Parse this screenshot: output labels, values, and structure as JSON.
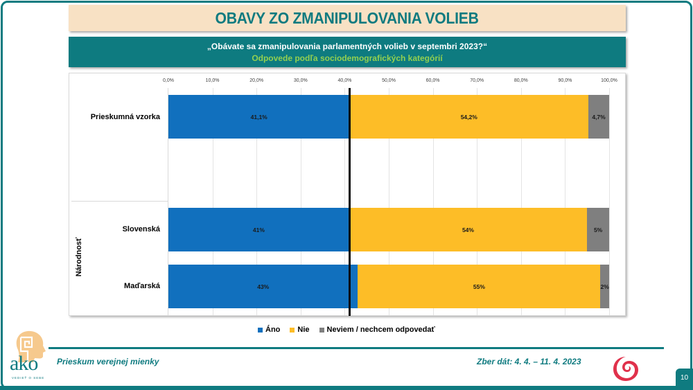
{
  "slide": {
    "title": "OBAVY ZO ZMANIPULOVANIA VOLIEB",
    "question": "„Obávate sa zmanipulovania parlamentných volieb v septembri 2023?“",
    "subtitle": "Odpovede podľa sociodemografických kategórií",
    "page_number": "10"
  },
  "footer": {
    "left_text": "Prieskum verejnej mienky",
    "right_text": "Zber dát: 4. 4. – 11. 4. 2023",
    "logo_text": "ako",
    "logo_tagline": "VEDIEŤ O SEBE"
  },
  "axis": {
    "ticks": [
      "0,0%",
      "10,0%",
      "20,0%",
      "30,0%",
      "40,0%",
      "50,0%",
      "60,0%",
      "70,0%",
      "80,0%",
      "90,0%",
      "100,0%"
    ]
  },
  "legend": {
    "items": [
      {
        "label": "Áno",
        "color": "#1170be"
      },
      {
        "label": "Nie",
        "color": "#fdbd27"
      },
      {
        "label": "Neviem / nechcem odpovedať",
        "color": "#7f7f7f"
      }
    ]
  },
  "rows": [
    {
      "label": "Prieskumná vzorka",
      "group": "",
      "ano": 41.1,
      "nie": 54.2,
      "neviem": 4.7,
      "ano_label": "41,1%",
      "nie_label": "54,2%",
      "neviem_label": "4,7%"
    },
    {
      "label": "Slovenská",
      "group": "Národnosť",
      "ano": 41,
      "nie": 54,
      "neviem": 5,
      "ano_label": "41%",
      "nie_label": "54%",
      "neviem_label": "5%"
    },
    {
      "label": "Maďarská",
      "group": "Národnosť",
      "ano": 43,
      "nie": 55,
      "neviem": 2,
      "ano_label": "43%",
      "nie_label": "55%",
      "neviem_label": "2%"
    }
  ],
  "group_label": "Národnosť",
  "colors": {
    "teal": "#0f7b80",
    "peach": "#f8e1c4",
    "green_text": "#92d050",
    "ano": "#1170be",
    "nie": "#fdbd27",
    "neviem": "#7f7f7f",
    "swirl_red": "#e0314b"
  },
  "chart_data": {
    "type": "bar",
    "orientation": "horizontal",
    "stacked": true,
    "title": "OBAVY ZO ZMANIPULOVANIA VOLIEB",
    "subtitle": "„Obávate sa zmanipulovania parlamentných volieb v septembri 2023?“ — Odpovede podľa sociodemografických kategórií",
    "categories": [
      "Prieskumná vzorka",
      "Národnosť: Slovenská",
      "Národnosť: Maďarská"
    ],
    "series": [
      {
        "name": "Áno",
        "values": [
          41.1,
          41,
          43
        ],
        "color": "#1170be"
      },
      {
        "name": "Nie",
        "values": [
          54.2,
          54,
          55
        ],
        "color": "#fdbd27"
      },
      {
        "name": "Neviem / nechcem odpovedať",
        "values": [
          4.7,
          5,
          2
        ],
        "color": "#7f7f7f"
      }
    ],
    "xlabel": "",
    "ylabel": "Národnosť",
    "xlim": [
      0,
      100
    ],
    "x_ticks": [
      "0,0%",
      "10,0%",
      "20,0%",
      "30,0%",
      "40,0%",
      "50,0%",
      "60,0%",
      "70,0%",
      "80,0%",
      "90,0%",
      "100,0%"
    ],
    "grid": true,
    "legend_position": "bottom",
    "reference_line": {
      "x": 41.1,
      "color": "#000000",
      "description": "vertical line at overall sample 'Áno' share"
    }
  }
}
